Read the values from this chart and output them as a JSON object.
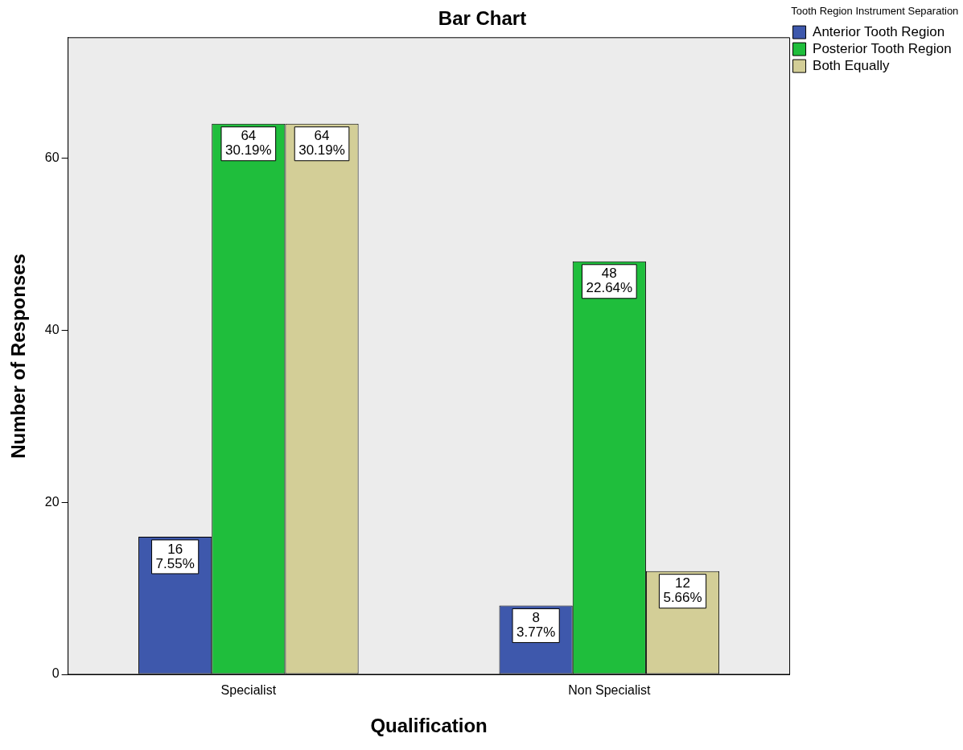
{
  "chart_data": {
    "type": "bar",
    "title": "Bar Chart",
    "xlabel": "Qualification",
    "ylabel": "Number of Responses",
    "legend_title": "Tooth Region Instrument Separation",
    "legend": "top right",
    "categories": [
      "Specialist",
      "Non Specialist"
    ],
    "series": [
      {
        "name": "Anterior Tooth Region",
        "color": "#3e58ac",
        "values": [
          16,
          8
        ],
        "value_labels": [
          "16\n7.55%",
          "8\n3.77%"
        ]
      },
      {
        "name": "Posterior Tooth Region",
        "color": "#1fbe3c",
        "values": [
          64,
          48
        ],
        "value_labels": [
          "64\n30.19%",
          "48\n22.64%"
        ]
      },
      {
        "name": "Both Equally",
        "color": "#d3ce97",
        "values": [
          64,
          12
        ],
        "value_labels": [
          "64\n30.19%",
          "12\n5.66%"
        ]
      }
    ],
    "ylim": [
      0,
      74
    ],
    "yticks": [
      0,
      20,
      40,
      60
    ],
    "grid": false
  }
}
